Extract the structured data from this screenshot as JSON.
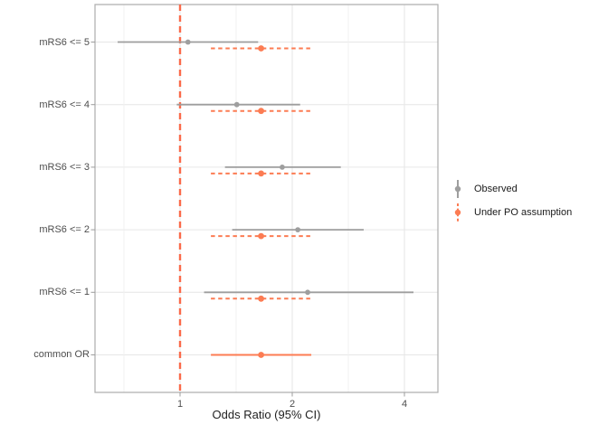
{
  "chart_data": {
    "type": "pointrange_forest",
    "title": "",
    "xlabel": "Odds Ratio (95% CI)",
    "x_scale": "log2",
    "x_ticks": [
      1,
      2,
      4
    ],
    "x_tick_labels": [
      "1",
      "2",
      "4"
    ],
    "x_minor_ticks": [
      0.7071,
      1.4142,
      2.8284
    ],
    "x_domain": [
      0.59,
      4.9
    ],
    "categories": [
      "mRS6 <= 5",
      "mRS6 <= 4",
      "mRS6 <= 3",
      "mRS6 <= 2",
      "mRS6 <= 1",
      "common OR"
    ],
    "reference_line": {
      "x": 1,
      "color": "#fb6a4a",
      "style": "dashed"
    },
    "series": [
      {
        "name": "Observed",
        "color": "#9e9e9e",
        "line_style": "solid",
        "points": [
          {
            "category": "mRS6 <= 5",
            "or": 1.05,
            "ci_low": 0.68,
            "ci_high": 1.62,
            "dashed": false
          },
          {
            "category": "mRS6 <= 4",
            "or": 1.42,
            "ci_low": 0.98,
            "ci_high": 2.1,
            "dashed": false
          },
          {
            "category": "mRS6 <= 3",
            "or": 1.88,
            "ci_low": 1.32,
            "ci_high": 2.7,
            "dashed": false
          },
          {
            "category": "mRS6 <= 2",
            "or": 2.07,
            "ci_low": 1.38,
            "ci_high": 3.11,
            "dashed": false
          },
          {
            "category": "mRS6 <= 1",
            "or": 2.2,
            "ci_low": 1.16,
            "ci_high": 4.23,
            "dashed": false
          }
        ]
      },
      {
        "name": "Under PO assumption",
        "color": "#fc7c53",
        "line_style": "dashed",
        "points": [
          {
            "category": "mRS6 <= 5",
            "or": 1.65,
            "ci_low": 1.21,
            "ci_high": 2.25,
            "dashed": true
          },
          {
            "category": "mRS6 <= 4",
            "or": 1.65,
            "ci_low": 1.21,
            "ci_high": 2.25,
            "dashed": true
          },
          {
            "category": "mRS6 <= 3",
            "or": 1.65,
            "ci_low": 1.21,
            "ci_high": 2.25,
            "dashed": true
          },
          {
            "category": "mRS6 <= 2",
            "or": 1.65,
            "ci_low": 1.21,
            "ci_high": 2.25,
            "dashed": true
          },
          {
            "category": "mRS6 <= 1",
            "or": 1.65,
            "ci_low": 1.21,
            "ci_high": 2.25,
            "dashed": true
          },
          {
            "category": "common OR",
            "or": 1.65,
            "ci_low": 1.21,
            "ci_high": 2.25,
            "dashed": false
          }
        ]
      }
    ],
    "legend_position": "right",
    "grid": true,
    "colors": {
      "grid_major": "#e6e6e6",
      "grid_minor": "#f0f0f0",
      "panel_border": "#acacac",
      "tick_mark": "#9c9c9c",
      "axis_text": "#4d4d4d",
      "background": "#ffffff"
    }
  }
}
